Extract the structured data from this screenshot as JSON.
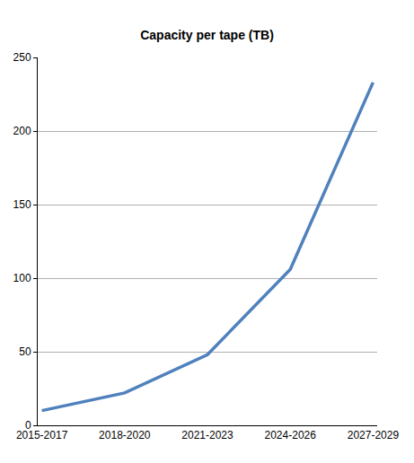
{
  "chart_data": {
    "type": "line",
    "title": "Capacity per tape (TB)",
    "categories": [
      "2015-2017",
      "2018-2020",
      "2021-2023",
      "2024-2026",
      "2027-2029"
    ],
    "values": [
      10,
      22,
      48,
      106,
      233
    ],
    "color": "#4f81bd",
    "ylim": [
      0,
      250
    ],
    "yticks": [
      0,
      50,
      100,
      150,
      200,
      250
    ],
    "grid": true
  }
}
